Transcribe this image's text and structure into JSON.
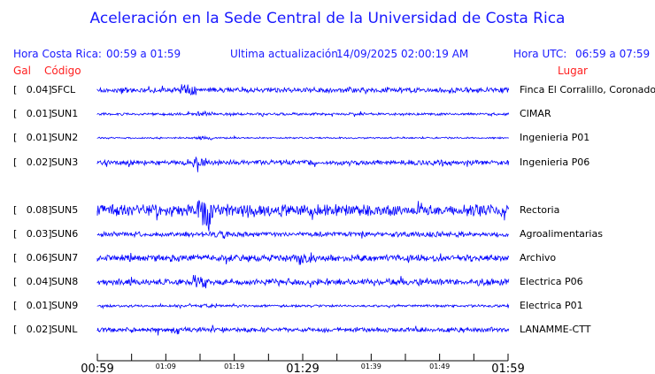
{
  "title": "Aceleración en la Sede Central de la Universidad de Costa Rica",
  "header": {
    "cr_label": "Hora Costa Rica:",
    "cr_range": "00:59 a 01:59",
    "update_label": "Ultima actualización:",
    "update_value": "14/09/2025 02:00:19 AM",
    "utc_label": "Hora UTC:",
    "utc_range": "06:59 a 07:59"
  },
  "columns": {
    "gal": "Gal",
    "code": "Código",
    "place": "Lugar"
  },
  "trace_color": "#0000ff",
  "stations": [
    {
      "gal": "[   0.04]",
      "code": "SFCL",
      "place": "Finca El Corralillo, Coronado"
    },
    {
      "gal": "[   0.01]",
      "code": "SUN1",
      "place": "CIMAR"
    },
    {
      "gal": "[   0.01]",
      "code": "SUN2",
      "place": "Ingenieria P01"
    },
    {
      "gal": "[   0.02]",
      "code": "SUN3",
      "place": "Ingenieria P06"
    },
    {
      "gal": "[   0.08]",
      "code": "SUN5",
      "place": "Rectoria"
    },
    {
      "gal": "[   0.03]",
      "code": "SUN6",
      "place": "Agroalimentarias"
    },
    {
      "gal": "[   0.06]",
      "code": "SUN7",
      "place": "Archivo"
    },
    {
      "gal": "[   0.04]",
      "code": "SUN8",
      "place": "Electrica P06"
    },
    {
      "gal": "[   0.01]",
      "code": "SUN9",
      "place": "Electrica P01"
    },
    {
      "gal": "[   0.02]",
      "code": "SUNL",
      "place": "LANAMME-CTT"
    }
  ],
  "time_axis": {
    "major": [
      "00:59",
      "01:29",
      "01:59"
    ],
    "minor": [
      "01:09",
      "01:19",
      "01:39",
      "01:49"
    ]
  }
}
